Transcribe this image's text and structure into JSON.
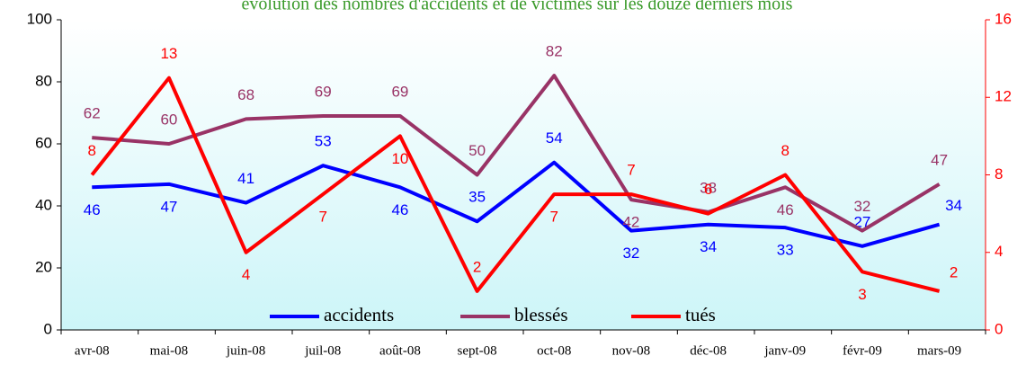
{
  "chart_data": {
    "type": "line",
    "title": "évolution des nombres d'accidents et de victimes sur les douze derniers mois",
    "title_color": "#3a9a2a",
    "categories": [
      "avr-08",
      "mai-08",
      "juin-08",
      "juil-08",
      "août-08",
      "sept-08",
      "oct-08",
      "nov-08",
      "déc-08",
      "janv-09",
      "févr-09",
      "mars-09"
    ],
    "series": [
      {
        "name": "accidents",
        "color": "#0000ff",
        "values": [
          46,
          47,
          41,
          53,
          46,
          35,
          54,
          32,
          34,
          33,
          27,
          34
        ]
      },
      {
        "name": "blessés",
        "color": "#993366",
        "values": [
          62,
          60,
          68,
          69,
          69,
          50,
          82,
          42,
          38,
          46,
          32,
          47
        ]
      },
      {
        "name": "tués",
        "color": "#ff0000",
        "axis": "y2",
        "values": [
          8,
          13,
          4,
          7,
          10,
          2,
          7,
          7,
          6,
          8,
          3,
          2
        ]
      }
    ],
    "ylim": [
      0,
      100
    ],
    "yticks": [
      0,
      20,
      40,
      60,
      80,
      100
    ],
    "y2lim": [
      0,
      16
    ],
    "y2ticks": [
      0,
      4,
      8,
      12,
      16
    ],
    "y2color": "#ff0000",
    "legend": "bottom"
  }
}
